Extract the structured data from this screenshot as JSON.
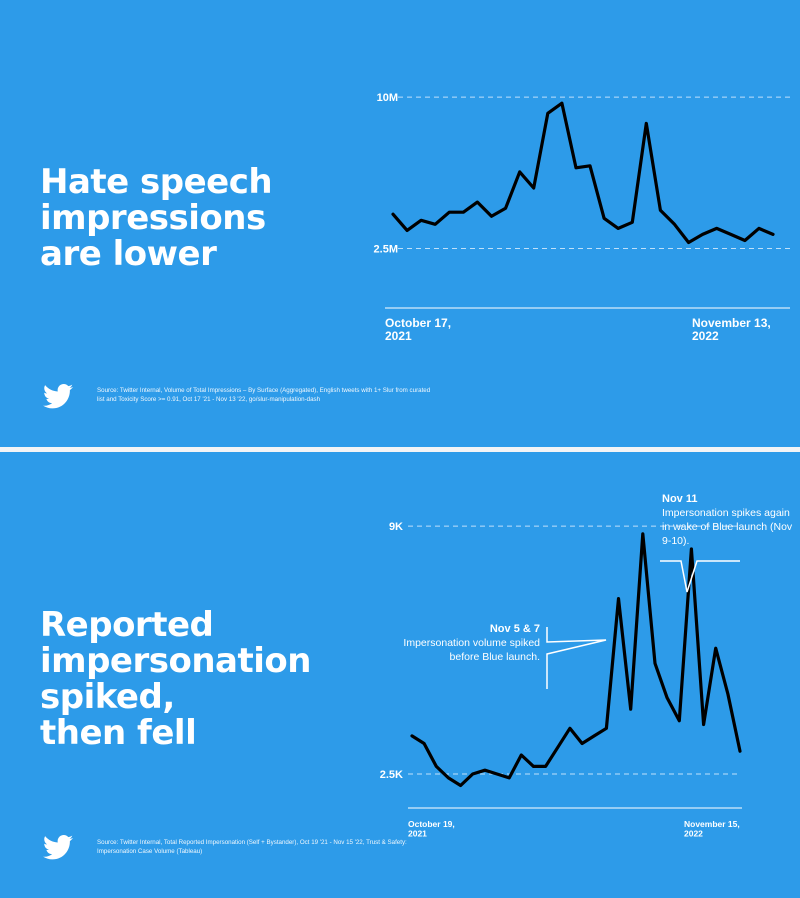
{
  "colors": {
    "background": "#2d9be9",
    "line": "#000000",
    "text": "#ffffff",
    "gridline": "#bfe0fa"
  },
  "icons": {
    "logo": "twitter-bird-icon"
  },
  "panels": [
    {
      "headline": [
        "Hate speech",
        "impressions",
        "are lower"
      ],
      "source": "Source: Twitter Internal, Volume of Total Impressions – By Surface (Aggregated), English tweets with 1+ Slur from curated list and Toxicity Score >= 0.91, Oct 17 '21 - Nov 13 '22, go/slur-manipulation-dash",
      "x_start": [
        "October 17,",
        "2021"
      ],
      "x_end": [
        "November 13,",
        "2022"
      ]
    },
    {
      "headline": [
        "Reported",
        "impersonation",
        "spiked,",
        "then fell"
      ],
      "source": "Source: Twitter Internal, Total Reported Impersonation (Self + Bystander), Oct 19 '21 - Nov 15 '22, Trust & Safety: Impersonation Case Volume (Tableau)",
      "x_start": [
        "October 19,",
        "2021"
      ],
      "x_end": [
        "November 15,",
        "2022"
      ],
      "annotations": [
        {
          "title": "Nov 5 & 7",
          "text": "Impersonation volume spiked before Blue launch."
        },
        {
          "title": "Nov 11",
          "text": "Impersonation spikes again in wake of Blue launch (Nov 9-10)."
        }
      ]
    }
  ],
  "chart_data": [
    {
      "type": "line",
      "title": "Hate speech impressions are lower",
      "xlabel": "",
      "ylabel": "",
      "x_range": [
        "October 17, 2021",
        "November 13, 2022"
      ],
      "ylim": [
        0,
        11000000
      ],
      "y_ticks": [
        {
          "label": "2.5M",
          "value": 2500000
        },
        {
          "label": "10M",
          "value": 10000000
        }
      ],
      "grid": true,
      "series": [
        {
          "values": [
            4200000,
            3400000,
            3900000,
            3700000,
            4300000,
            4300000,
            4800000,
            4100000,
            4500000,
            6300000,
            5500000,
            9200000,
            9700000,
            6500000,
            6600000,
            4000000,
            3500000,
            3800000,
            8700000,
            4400000,
            3700000,
            2800000,
            3200000,
            3500000,
            3200000,
            2900000,
            3500000,
            3200000
          ]
        }
      ]
    },
    {
      "type": "line",
      "title": "Reported impersonation spiked, then fell",
      "xlabel": "",
      "ylabel": "",
      "x_range": [
        "October 19, 2021",
        "November 15, 2022"
      ],
      "ylim": [
        1400,
        10000
      ],
      "y_ticks": [
        {
          "label": "2.5K",
          "value": 2500
        },
        {
          "label": "9K",
          "value": 9000
        }
      ],
      "grid": true,
      "series": [
        {
          "values": [
            3500,
            3300,
            2700,
            2400,
            2200,
            2500,
            2600,
            2500,
            2400,
            3000,
            2700,
            2700,
            3200,
            3700,
            3300,
            3500,
            3700,
            7100,
            4200,
            8800,
            5400,
            4500,
            3900,
            8400,
            3800,
            5800,
            4600,
            3100
          ]
        }
      ]
    }
  ]
}
